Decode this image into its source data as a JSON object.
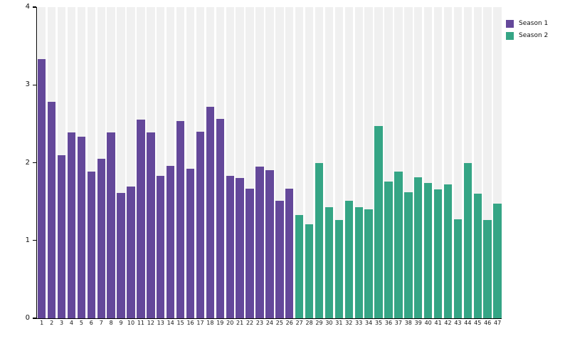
{
  "figure": {
    "background": "#ffffff",
    "track_color": "#f0f0f0",
    "axis_color": "#000000",
    "text_color": "#111111"
  },
  "legend": {
    "position": "top-right",
    "items": [
      {
        "label": "Season 1",
        "color": "#64489a"
      },
      {
        "label": "Season 2",
        "color": "#35a585"
      }
    ]
  },
  "chart_data": {
    "type": "bar",
    "title": "",
    "xlabel": "",
    "ylabel": "",
    "ylim": [
      0,
      4
    ],
    "yticks": [
      0,
      1,
      2,
      3,
      4
    ],
    "grid": false,
    "background_tracks": true,
    "categories": [
      "1",
      "2",
      "3",
      "4",
      "5",
      "6",
      "7",
      "8",
      "9",
      "10",
      "11",
      "12",
      "13",
      "14",
      "15",
      "16",
      "17",
      "18",
      "19",
      "20",
      "21",
      "22",
      "23",
      "24",
      "25",
      "26",
      "27",
      "28",
      "29",
      "30",
      "31",
      "32",
      "33",
      "34",
      "35",
      "36",
      "37",
      "38",
      "39",
      "40",
      "41",
      "42",
      "43",
      "44",
      "45",
      "46",
      "47"
    ],
    "series": [
      {
        "name": "Season 1",
        "color": "#64489a",
        "categories": [
          "1",
          "2",
          "3",
          "4",
          "5",
          "6",
          "7",
          "8",
          "9",
          "10",
          "11",
          "12",
          "13",
          "14",
          "15",
          "16",
          "17",
          "18",
          "19",
          "20",
          "21",
          "22",
          "23",
          "24",
          "25",
          "26"
        ],
        "values": [
          3.33,
          2.78,
          2.1,
          2.39,
          2.33,
          1.89,
          2.05,
          2.39,
          1.61,
          1.69,
          2.55,
          2.39,
          1.83,
          1.96,
          2.54,
          1.92,
          2.4,
          2.72,
          2.56,
          1.83,
          1.8,
          1.67,
          1.95,
          1.9,
          1.51,
          1.67
        ]
      },
      {
        "name": "Season 2",
        "color": "#35a585",
        "categories": [
          "27",
          "28",
          "29",
          "30",
          "31",
          "32",
          "33",
          "34",
          "35",
          "36",
          "37",
          "38",
          "39",
          "40",
          "41",
          "42",
          "43",
          "44",
          "45",
          "46",
          "47"
        ],
        "values": [
          1.33,
          1.21,
          2.0,
          1.43,
          1.26,
          1.51,
          1.43,
          1.4,
          2.47,
          1.76,
          1.89,
          1.62,
          1.81,
          1.74,
          1.66,
          1.72,
          1.27,
          2.0,
          1.6,
          1.26,
          1.47
        ]
      }
    ]
  }
}
